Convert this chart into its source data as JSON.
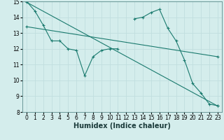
{
  "xlabel": "Humidex (Indice chaleur)",
  "background_color": "#d4edec",
  "grid_color": "#c0dede",
  "line_color": "#1a7a6e",
  "xlim": [
    -0.5,
    23.5
  ],
  "ylim": [
    8,
    15
  ],
  "xticks": [
    0,
    1,
    2,
    3,
    4,
    5,
    6,
    7,
    8,
    9,
    10,
    11,
    12,
    13,
    14,
    15,
    16,
    17,
    18,
    19,
    20,
    21,
    22,
    23
  ],
  "yticks": [
    8,
    9,
    10,
    11,
    12,
    13,
    14,
    15
  ],
  "series1_x": [
    0,
    1,
    2,
    3,
    4,
    5,
    6,
    7,
    8,
    9,
    10,
    11,
    13,
    14,
    15,
    16,
    17,
    18,
    19,
    20,
    21,
    22,
    23
  ],
  "series1_y": [
    15.0,
    14.4,
    13.5,
    12.5,
    12.5,
    12.0,
    11.9,
    10.3,
    11.5,
    11.9,
    12.0,
    12.0,
    13.9,
    14.0,
    14.3,
    14.5,
    13.3,
    12.5,
    11.3,
    9.8,
    9.2,
    8.5,
    8.4
  ],
  "series1_break_after": 11,
  "series2_x": [
    0,
    23
  ],
  "series2_y": [
    14.95,
    8.38
  ],
  "series3_x": [
    0,
    23
  ],
  "series3_y": [
    13.4,
    11.5
  ]
}
